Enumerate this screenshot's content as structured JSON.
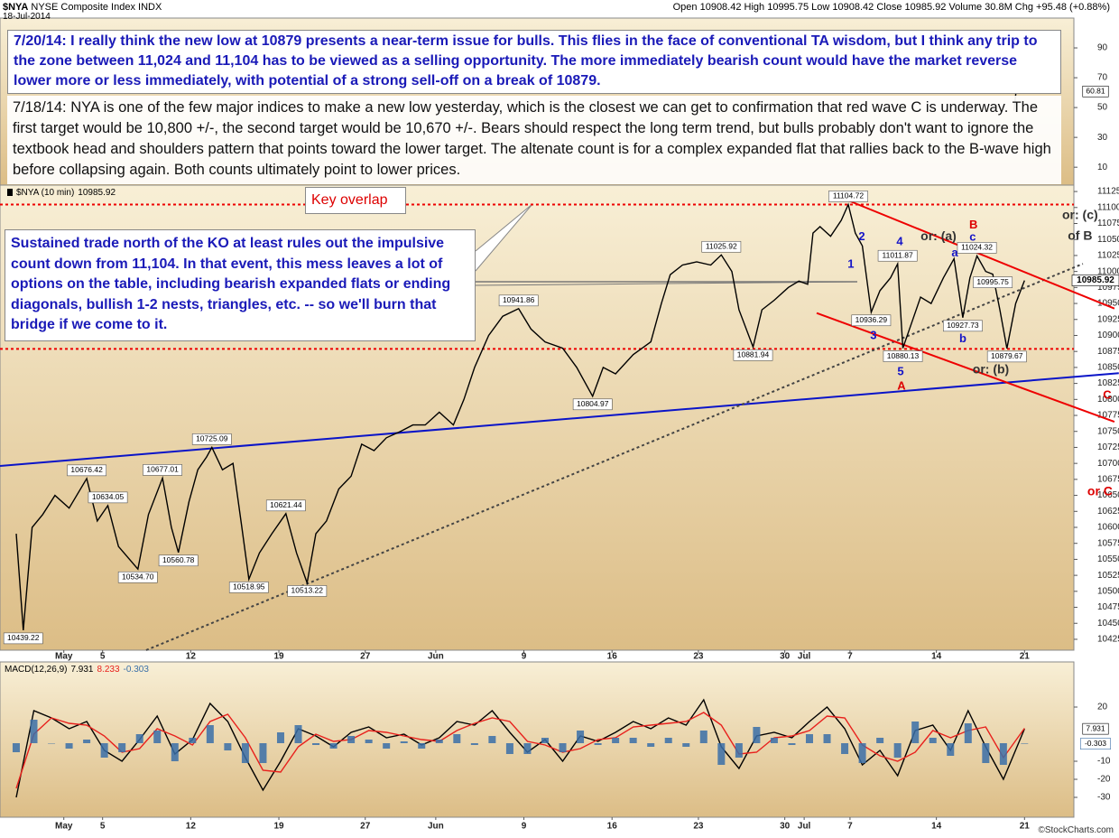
{
  "header": {
    "symbol": "$NYA",
    "name": "NYSE Composite Index INDX",
    "date": "18-Jul-2014",
    "quote": "Open 10908.42 High 10995.75 Low 10908.42 Close 10985.92 Volume 30.8M Chg +95.48 (+0.88%)"
  },
  "footer": "©StockCharts.com",
  "notes": {
    "update": "7/20/14:  I really think the new low at 10879 presents a near-term issue for bulls.  This flies in the face of conventional TA wisdom, but I think any trip to the zone between 11,024 and 11,104 has to be viewed as a selling opportunity.  The more immediately bearish count would have the market reverse lower more or less immediately, with potential of a strong sell-off on a break of 10879.",
    "original": "7/18/14:  NYA is one of the few major indices to make a new low yesterday, which is the closest we can get to confirmation that red wave C is underway.  The first target would be 10,800 +/-, the second target would be 10,670 +/-.  Bears should respect the long term trend, but bulls probably don't want to ignore the textbook head and shoulders pattern that points toward the lower target. The altenate count is for a complex expanded flat that rallies back to the B-wave high before collapsing again.  Both counts ultimately point to lower prices.",
    "callout": "Sustained trade north of the KO at least rules out the impulsive count down from 11,104.  In that event, this mess leaves a lot of options on the table, including bearish expanded flats or ending diagonals, bullish 1-2 nests, triangles, etc. -- so we'll burn that bridge if we come to it.",
    "key_overlap": "Key overlap"
  },
  "chart_data": [
    {
      "type": "line",
      "xlim": [
        -0.92,
        60
      ],
      "ylim": [
        10408,
        11135
      ],
      "yticks": [
        10425,
        10450,
        10475,
        10500,
        10525,
        10550,
        10575,
        10600,
        10625,
        10650,
        10675,
        10700,
        10725,
        10750,
        10775,
        10800,
        10825,
        10850,
        10875,
        10900,
        10925,
        10950,
        10975,
        11000,
        11025,
        11050,
        11075,
        11100,
        11125
      ],
      "xticks": [
        {
          "value": 2.7,
          "label": "May"
        },
        {
          "value": 4.9,
          "label": "5"
        },
        {
          "value": 9.9,
          "label": "12"
        },
        {
          "value": 14.9,
          "label": "19"
        },
        {
          "value": 19.8,
          "label": "27"
        },
        {
          "value": 23.8,
          "label": "Jun"
        },
        {
          "value": 28.8,
          "label": "9"
        },
        {
          "value": 33.8,
          "label": "16"
        },
        {
          "value": 38.7,
          "label": "23"
        },
        {
          "value": 43.6,
          "label": "30"
        },
        {
          "value": 44.7,
          "label": "Jul"
        },
        {
          "value": 47.3,
          "label": "7"
        },
        {
          "value": 52.2,
          "label": "14"
        },
        {
          "value": 57.2,
          "label": "21"
        }
      ],
      "grid": false,
      "series": [
        {
          "name": "$NYA (10 min)",
          "color": "#000000",
          "x": [
            0,
            0.4,
            0.9,
            1.5,
            2.2,
            3,
            4,
            4.6,
            5.2,
            5.8,
            6.9,
            7.5,
            8.3,
            8.8,
            9.2,
            9.8,
            10.3,
            10.8,
            11.1,
            11.7,
            12.3,
            12.8,
            13.2,
            13.8,
            14.5,
            15.3,
            15.9,
            16.5,
            17,
            17.6,
            18.3,
            19,
            19.6,
            20.3,
            21,
            21.8,
            22.5,
            23.2,
            24,
            24.8,
            25.4,
            26,
            26.8,
            27.6,
            28.5,
            29.2,
            30,
            31,
            31.8,
            32.7,
            33.3,
            34,
            35,
            36,
            36.6,
            37.1,
            37.8,
            38.6,
            39.4,
            40,
            40.6,
            41,
            41.8,
            42.3,
            43,
            43.8,
            44.4,
            44.9,
            45.2,
            45.6,
            46.2,
            46.8,
            47.2,
            47.6,
            48,
            48.5,
            49,
            49.6,
            50,
            50.3,
            50.8,
            51.3,
            51.9,
            52.6,
            53.2,
            53.7,
            54.1,
            54.5,
            55,
            55.4,
            55.8,
            56.2,
            56.7,
            57.2
          ],
          "values": [
            10590,
            10439.22,
            10600,
            10620,
            10650,
            10630,
            10676.42,
            10610,
            10634.05,
            10570,
            10534.7,
            10620,
            10677.01,
            10600,
            10560.78,
            10640,
            10690,
            10710,
            10725.09,
            10690,
            10700,
            10600,
            10518.95,
            10560,
            10590,
            10621.44,
            10560,
            10513.22,
            10590,
            10610,
            10660,
            10680,
            10730,
            10720,
            10740,
            10750,
            10760,
            10760,
            10780,
            10760,
            10800,
            10850,
            10900,
            10930,
            10941.86,
            10910,
            10890,
            10880,
            10850,
            10804.97,
            10850,
            10840,
            10870,
            10890,
            10950,
            10995,
            11010,
            11015,
            11010,
            11025.92,
            11000,
            10940,
            10881.94,
            10940,
            10955,
            10975,
            10985,
            10980,
            11060,
            11070,
            11055,
            11080,
            11104.72,
            11060,
            11040,
            10936.29,
            10970,
            10990,
            11011.87,
            10880.13,
            10920,
            10960,
            10950,
            10990,
            11020,
            10927.73,
            10990,
            11024.32,
            11000,
            10995.75,
            10940,
            10879.67,
            10950,
            10985.92
          ],
          "value_labels": [
            null,
            "10439.22",
            null,
            null,
            null,
            null,
            "10676.42",
            null,
            "10634.05",
            null,
            "10534.70",
            null,
            "10677.01",
            null,
            "10560.78",
            null,
            null,
            null,
            "10725.09",
            null,
            null,
            null,
            "10518.95",
            null,
            null,
            "10621.44",
            null,
            "10513.22",
            null,
            null,
            null,
            null,
            null,
            null,
            null,
            null,
            null,
            null,
            null,
            null,
            null,
            null,
            null,
            null,
            "10941.86",
            null,
            null,
            null,
            null,
            "10804.97",
            null,
            null,
            null,
            null,
            null,
            null,
            null,
            null,
            null,
            "11025.92",
            null,
            null,
            "10881.94",
            null,
            null,
            null,
            null,
            null,
            null,
            null,
            null,
            null,
            "11104.72",
            null,
            null,
            "10936.29",
            null,
            null,
            "11011.87",
            "10880.13",
            null,
            null,
            null,
            null,
            null,
            "10927.73",
            null,
            "11024.32",
            null,
            "10995.75",
            null,
            "10879.67",
            null,
            null
          ]
        }
      ],
      "lines": [
        {
          "color": "#ee0000",
          "dash": true,
          "x": [
            -0.92,
            60
          ],
          "y": [
            11104.72,
            11104.72
          ]
        },
        {
          "color": "#ee0000",
          "dash": true,
          "x": [
            -0.92,
            60
          ],
          "y": [
            10879,
            10879
          ]
        },
        {
          "color": "#0a14c8",
          "dash": false,
          "x": [
            -0.92,
            62.55
          ],
          "y": [
            10696,
            10841
          ]
        },
        {
          "color": "#444444",
          "dash": true,
          "x": [
            7.37,
            60.51
          ],
          "y": [
            10408,
            11012
          ]
        },
        {
          "color": "#ee0000",
          "dash": false,
          "x": [
            47.2,
            62.3
          ],
          "y": [
            11111,
            10942
          ]
        },
        {
          "color": "#ee0000",
          "dash": false,
          "x": [
            45.41,
            62.3
          ],
          "y": [
            10935,
            10765
          ]
        }
      ],
      "annotations": [
        {
          "text": "1",
          "x": 47.35,
          "y": 11011,
          "color": "#1414c8"
        },
        {
          "text": "2",
          "x": 47.97,
          "y": 11054,
          "color": "#1414c8"
        },
        {
          "text": "3",
          "x": 48.63,
          "y": 10899,
          "color": "#1414c8"
        },
        {
          "text": "4",
          "x": 50.12,
          "y": 11046,
          "color": "#1414c8"
        },
        {
          "text": "5",
          "x": 50.17,
          "y": 10843,
          "color": "#1414c8"
        },
        {
          "text": "A",
          "x": 50.22,
          "y": 10820,
          "color": "#dd0000"
        },
        {
          "text": "a",
          "x": 53.24,
          "y": 11028,
          "color": "#1414c8"
        },
        {
          "text": "b",
          "x": 53.7,
          "y": 10894,
          "color": "#1414c8"
        },
        {
          "text": "c",
          "x": 54.26,
          "y": 11053,
          "color": "#1414c8"
        },
        {
          "text": "B",
          "x": 54.3,
          "y": 11072,
          "color": "#dd0000"
        },
        {
          "text": "or: (a)",
          "x": 52.32,
          "y": 11054,
          "color": "#333333"
        },
        {
          "text": "or: (b)",
          "x": 55.29,
          "y": 10846,
          "color": "#333333"
        },
        {
          "text": "or: (c)",
          "x": 60.35,
          "y": 11087,
          "color": "#333333"
        },
        {
          "text": "of B",
          "x": 60.35,
          "y": 11055,
          "color": "#333333"
        },
        {
          "text": "C",
          "x": 61.89,
          "y": 10806,
          "color": "#dd0000"
        },
        {
          "text": "or C",
          "x": 61.48,
          "y": 10655,
          "color": "#dd0000"
        }
      ]
    },
    {
      "type": "line",
      "title": "MACD(12,26,9)",
      "ylim": [
        -41,
        45
      ],
      "yticks": [
        -30,
        -20,
        -10,
        20
      ],
      "series": [
        {
          "color": "#000000",
          "x": [
            0,
            1,
            2,
            3,
            4,
            5,
            6,
            7,
            8,
            9,
            10,
            11,
            12,
            13,
            14,
            15,
            16,
            17,
            18,
            19,
            20,
            21,
            22,
            23,
            24,
            25,
            26,
            27,
            28,
            29,
            30,
            31,
            32,
            33,
            34,
            35,
            36,
            37,
            38,
            39,
            40,
            41,
            42,
            43,
            44,
            45,
            46,
            47,
            48,
            49,
            50,
            51,
            52,
            53,
            54,
            55,
            56,
            57.2
          ],
          "values": [
            -30,
            18,
            14,
            8,
            12,
            -4,
            -10,
            2,
            15,
            -6,
            2,
            22,
            12,
            -8,
            -26,
            -10,
            8,
            4,
            -2,
            6,
            9,
            3,
            5,
            -1,
            3,
            12,
            10,
            18,
            6,
            -5,
            2,
            -10,
            4,
            1,
            6,
            12,
            8,
            14,
            10,
            24,
            -2,
            -14,
            4,
            6,
            3,
            12,
            20,
            8,
            -12,
            -4,
            -18,
            7,
            10,
            -4,
            18,
            -2,
            -20,
            7.931
          ]
        },
        {
          "color": "#e8201c",
          "x": [
            0,
            1,
            2,
            3,
            4,
            5,
            6,
            7,
            8,
            9,
            10,
            11,
            12,
            13,
            14,
            15,
            16,
            17,
            18,
            19,
            20,
            21,
            22,
            23,
            24,
            25,
            26,
            27,
            28,
            29,
            30,
            31,
            32,
            33,
            34,
            35,
            36,
            37,
            38,
            39,
            40,
            41,
            42,
            43,
            44,
            45,
            46,
            47,
            48,
            49,
            50,
            51,
            52,
            53,
            54,
            55,
            56,
            57.2
          ],
          "values": [
            -25,
            5,
            14,
            11,
            10,
            4,
            -5,
            -3,
            8,
            4,
            -1,
            12,
            16,
            3,
            -15,
            -16,
            -2,
            5,
            1,
            2,
            7,
            6,
            4,
            2,
            1,
            7,
            11,
            14,
            12,
            1,
            -1,
            -5,
            -3,
            2,
            3,
            9,
            10,
            11,
            12,
            17,
            10,
            -6,
            -5,
            3,
            4,
            7,
            15,
            14,
            -1,
            -7,
            -10,
            -5,
            7,
            3,
            7,
            9,
            -8,
            8.233
          ]
        },
        {
          "type": "bar",
          "color": "#3a6fa8",
          "x": [
            0,
            1,
            2,
            3,
            4,
            5,
            6,
            7,
            8,
            9,
            10,
            11,
            12,
            13,
            14,
            15,
            16,
            17,
            18,
            19,
            20,
            21,
            22,
            23,
            24,
            25,
            26,
            27,
            28,
            29,
            30,
            31,
            32,
            33,
            34,
            35,
            36,
            37,
            38,
            39,
            40,
            41,
            42,
            43,
            44,
            45,
            46,
            47,
            48,
            49,
            50,
            51,
            52,
            53,
            54,
            55,
            56,
            57.2
          ],
          "values": [
            -5,
            13,
            0,
            -3,
            2,
            -8,
            -5,
            5,
            7,
            -10,
            3,
            10,
            -4,
            -11,
            -11,
            6,
            10,
            -1,
            -3,
            4,
            2,
            -3,
            1,
            -3,
            2,
            5,
            -1,
            4,
            -6,
            -6,
            3,
            -5,
            7,
            -1,
            3,
            3,
            -2,
            3,
            -2,
            7,
            -12,
            -8,
            9,
            3,
            -1,
            5,
            5,
            -6,
            -11,
            3,
            -8,
            12,
            3,
            -7,
            11,
            -11,
            -12,
            -0.303
          ]
        }
      ]
    },
    {
      "type": "line",
      "ylim": [
        -2,
        110
      ],
      "yticks": [
        10,
        30,
        50,
        70,
        90
      ],
      "series": [
        {
          "color": "#000000",
          "x": [
            56.6,
            56.9,
            57.2
          ],
          "values": [
            48,
            80,
            60.81
          ]
        }
      ]
    }
  ]
}
